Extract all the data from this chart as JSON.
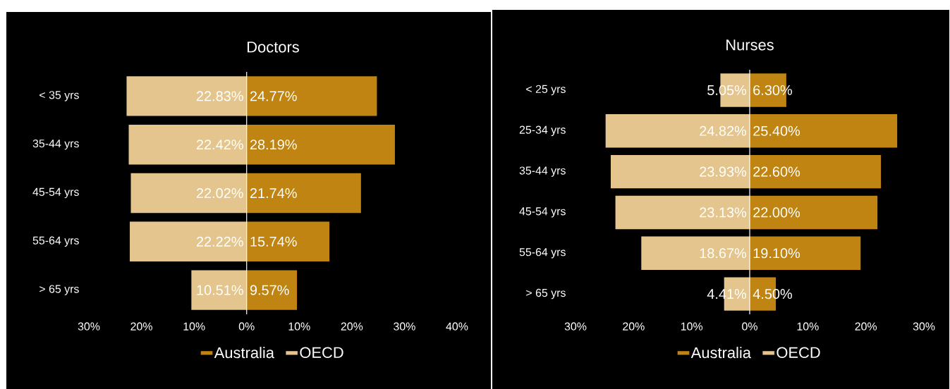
{
  "chart_data": [
    {
      "type": "bar",
      "orientation": "horizontal",
      "title": "Doctors",
      "categories": [
        "< 35 yrs",
        "35-44 yrs",
        "45-54 yrs",
        "55-64 yrs",
        "> 65 yrs"
      ],
      "series": [
        {
          "name": "Australia",
          "color": "#bf8411",
          "values": [
            24.77,
            28.19,
            21.74,
            15.74,
            9.57
          ],
          "base": [
            0,
            0,
            0,
            0,
            0
          ],
          "value_labels": [
            "24.77%",
            "28.19%",
            "21.74%",
            "15.74%",
            "9.57%"
          ]
        },
        {
          "name": "OECD",
          "color": "#e3c58d",
          "values": [
            22.83,
            22.42,
            22.02,
            22.22,
            10.51
          ],
          "base": [
            -22.83,
            -22.42,
            -22.02,
            -22.22,
            -10.51
          ],
          "value_labels": [
            "22.83%",
            "22.42%",
            "22.02%",
            "22.22%",
            "10.51%"
          ]
        }
      ],
      "xlim": [
        -30,
        40
      ],
      "xticks": [
        {
          "value": -30,
          "label": "30%"
        },
        {
          "value": -20,
          "label": "20%"
        },
        {
          "value": -10,
          "label": "10%"
        },
        {
          "value": 0,
          "label": "0%"
        },
        {
          "value": 10,
          "label": "10%"
        },
        {
          "value": 20,
          "label": "20%"
        },
        {
          "value": 30,
          "label": "30%"
        },
        {
          "value": 40,
          "label": "40%"
        }
      ],
      "legend": "bottom"
    },
    {
      "type": "bar",
      "orientation": "horizontal",
      "title": "Nurses",
      "categories": [
        "< 25 yrs",
        "25-34 yrs",
        "35-44 yrs",
        "45-54 yrs",
        "55-64 yrs",
        "> 65 yrs"
      ],
      "series": [
        {
          "name": "Australia",
          "color": "#bf8411",
          "values": [
            6.3,
            25.4,
            22.6,
            22.0,
            19.1,
            4.5
          ],
          "base": [
            0,
            0,
            0,
            0,
            0,
            0
          ],
          "value_labels": [
            "6.30%",
            "25.40%",
            "22.60%",
            "22.00%",
            "19.10%",
            "4.50%"
          ]
        },
        {
          "name": "OECD",
          "color": "#e3c58d",
          "values": [
            5.05,
            24.82,
            23.93,
            23.13,
            18.67,
            4.41
          ],
          "base": [
            -5.05,
            -24.82,
            -23.93,
            -23.13,
            -18.67,
            -4.41
          ],
          "value_labels": [
            "5.05%",
            "24.82%",
            "23.93%",
            "23.13%",
            "18.67%",
            "4.41%"
          ]
        }
      ],
      "xlim": [
        -30,
        30
      ],
      "xticks": [
        {
          "value": -30,
          "label": "30%"
        },
        {
          "value": -20,
          "label": "20%"
        },
        {
          "value": -10,
          "label": "10%"
        },
        {
          "value": 0,
          "label": "0%"
        },
        {
          "value": 10,
          "label": "10%"
        },
        {
          "value": 20,
          "label": "20%"
        },
        {
          "value": 30,
          "label": "30%"
        }
      ],
      "legend": "bottom"
    }
  ]
}
